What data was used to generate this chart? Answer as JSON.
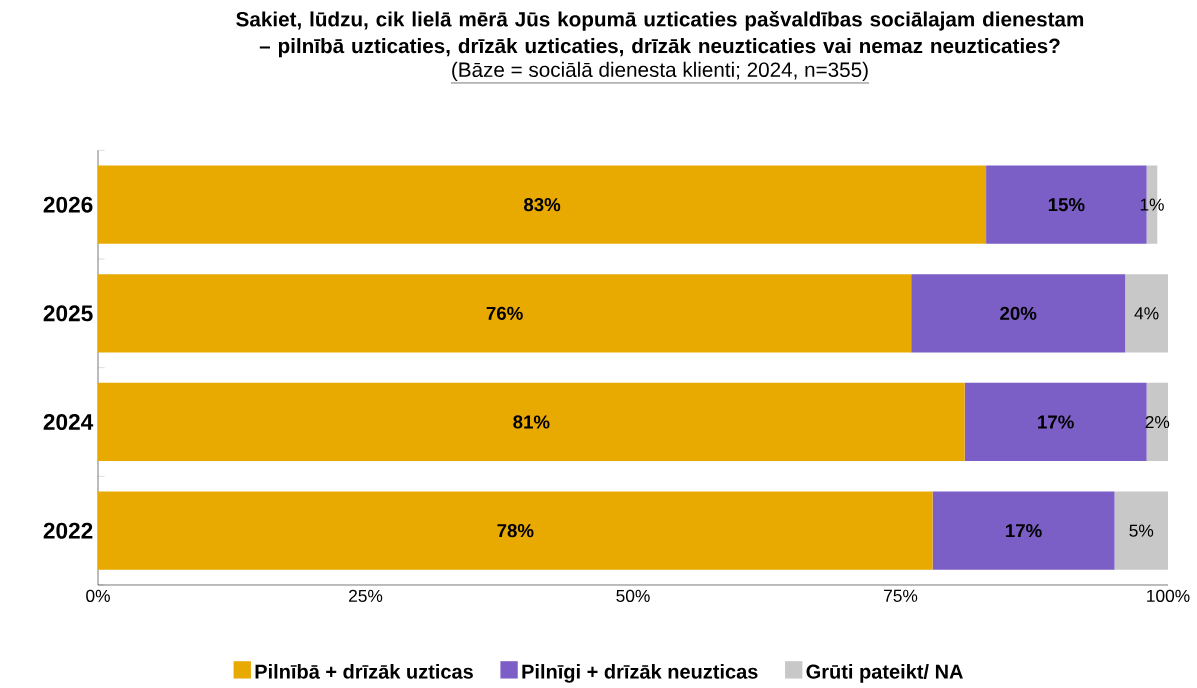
{
  "chart_data": {
    "type": "bar",
    "orientation": "horizontal",
    "stacked": true,
    "title": "Sakiet, lūdzu, cik lielā mērā Jūs kopumā uzticaties pašvaldības sociālajam dienestam – pilnībā uzticaties, drīzāk uzticaties, drīzāk neuzticaties vai nemaz neuzticaties?",
    "subtitle": "(Bāze = sociālā dienesta klienti; 2024, n=355)",
    "categories": [
      "2026",
      "2025",
      "2024",
      "2022"
    ],
    "series": [
      {
        "name": "Pilnībā + drīzāk uzticas",
        "color": "#e8a900",
        "values": [
          83,
          76,
          81,
          78
        ],
        "value_labels": [
          "83%",
          "76%",
          "81%",
          "78%"
        ]
      },
      {
        "name": "Pilnīgi + drīzāk neuzticas",
        "color": "#7b5ec6",
        "values": [
          15,
          20,
          17,
          17
        ],
        "value_labels": [
          "15%",
          "20%",
          "17%",
          "17%"
        ]
      },
      {
        "name": "Grūti pateikt/ NA",
        "color": "#c8c8c8",
        "values": [
          1,
          4,
          2,
          5
        ],
        "value_labels": [
          "1%",
          "4%",
          "2%",
          "5%"
        ]
      }
    ],
    "xlim": [
      0,
      100
    ],
    "xticks": [
      {
        "value": 0,
        "label": "0%"
      },
      {
        "value": 25,
        "label": "25%"
      },
      {
        "value": 50,
        "label": "50%"
      },
      {
        "value": 75,
        "label": "75%"
      },
      {
        "value": 100,
        "label": "100%"
      }
    ],
    "legend": "bottom",
    "grid": false
  }
}
